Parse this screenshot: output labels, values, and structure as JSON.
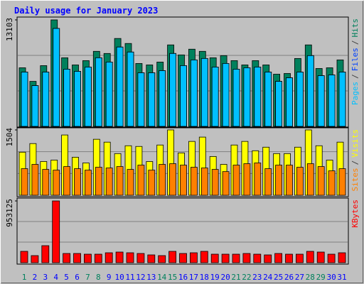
{
  "chart_data": [
    {
      "type": "bar",
      "title": "Daily usage for January 2023",
      "legend_separator": "/",
      "series": [
        {
          "name": "Hits",
          "color": "#00805c",
          "values": [
            7211,
            5540,
            7475,
            13103,
            8442,
            7563,
            8090,
            9234,
            8970,
            10817,
            10201,
            7739,
            7563,
            7915,
            10025,
            8794,
            9498,
            9234,
            8442,
            8706,
            8090,
            7563,
            8090,
            7563,
            6420,
            6508,
            8354,
            10025,
            7123,
            7211,
            8178
          ]
        },
        {
          "name": "Files",
          "color": "#0040ff",
          "values": [
            6683,
            5013,
            6683,
            12048,
            7035,
            6771,
            7299,
            8442,
            7915,
            9761,
            9146,
            6596,
            6596,
            6859,
            8970,
            7475,
            8178,
            8354,
            7299,
            7739,
            7035,
            7211,
            7299,
            6683,
            5540,
            5980,
            6683,
            8706,
            6244,
            6332,
            6683
          ]
        },
        {
          "name": "Pages",
          "color": "#00c0ff",
          "values": [
            6683,
            5013,
            6683,
            12048,
            7035,
            6771,
            7299,
            8442,
            7915,
            9761,
            9146,
            6596,
            6596,
            6859,
            8970,
            7475,
            8178,
            8354,
            7299,
            7739,
            7035,
            7211,
            7299,
            6683,
            5540,
            5980,
            6683,
            8706,
            6244,
            6332,
            6683
          ]
        }
      ],
      "ylim": [
        0,
        13103
      ],
      "yticks": [
        13103
      ]
    },
    {
      "type": "bar",
      "series": [
        {
          "name": "Visits",
          "color": "#ffff00",
          "values": [
            992,
            1190,
            777,
            810,
            1388,
            876,
            744,
            1289,
            1223,
            959,
            1140,
            1124,
            777,
            1157,
            1504,
            975,
            1240,
            1339,
            893,
            711,
            1157,
            1240,
            1025,
            1107,
            959,
            959,
            1107,
            1504,
            1140,
            810,
            1223
          ]
        },
        {
          "name": "Sites",
          "color": "#ff8000",
          "values": [
            612,
            711,
            595,
            578,
            661,
            612,
            578,
            645,
            628,
            661,
            595,
            694,
            578,
            711,
            727,
            694,
            645,
            628,
            595,
            545,
            694,
            727,
            744,
            612,
            694,
            694,
            645,
            727,
            661,
            562,
            612
          ]
        }
      ],
      "ylim": [
        0,
        1504
      ],
      "yticks": [
        1504
      ]
    },
    {
      "type": "bar",
      "categories": [
        "1",
        "2",
        "3",
        "4",
        "5",
        "6",
        "7",
        "8",
        "9",
        "10",
        "11",
        "12",
        "13",
        "14",
        "15",
        "16",
        "17",
        "18",
        "19",
        "20",
        "21",
        "22",
        "23",
        "24",
        "25",
        "26",
        "27",
        "28",
        "29",
        "30",
        "31"
      ],
      "category_colors": [
        "#00805c",
        "#0000ff",
        "#0000ff",
        "#0000ff",
        "#0000ff",
        "#0000ff",
        "#00805c",
        "#00805c",
        "#0000ff",
        "#0000ff",
        "#0000ff",
        "#0000ff",
        "#0000ff",
        "#00805c",
        "#00805c",
        "#0000ff",
        "#0000ff",
        "#0000ff",
        "#0000ff",
        "#0000ff",
        "#00805c",
        "#00805c",
        "#0000ff",
        "#0000ff",
        "#0000ff",
        "#0000ff",
        "#0000ff",
        "#00805c",
        "#00805c",
        "#0000ff",
        "#0000ff"
      ],
      "series": [
        {
          "name": "KBytes",
          "color": "#ff0000",
          "values": [
            175281,
            109555,
            262931,
            953125,
            142421,
            142421,
            131466,
            131466,
            153376,
            164332,
            153376,
            142421,
            120511,
            109555,
            175281,
            142421,
            153376,
            175281,
            131466,
            131466,
            131466,
            142421,
            131466,
            120511,
            142421,
            131466,
            131466,
            175281,
            164332,
            131466,
            153376
          ]
        }
      ],
      "ylim": [
        0,
        953125
      ],
      "yticks": [
        953125
      ]
    }
  ]
}
